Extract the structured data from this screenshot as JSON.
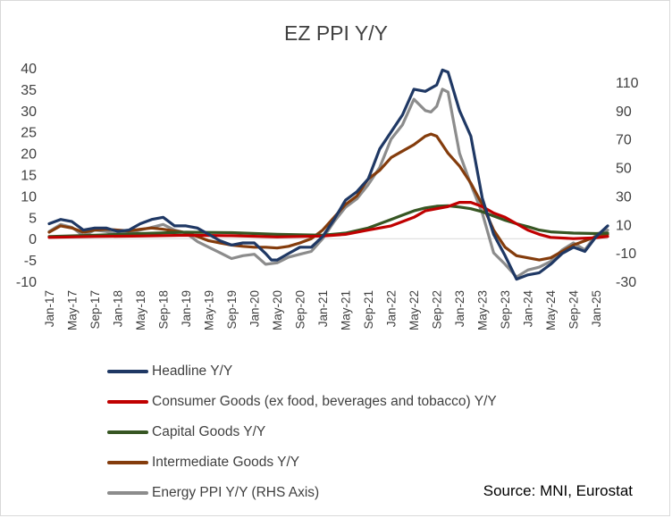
{
  "chart_data": {
    "type": "line",
    "title": "EZ PPI Y/Y",
    "source": "Source: MNI, Eurostat",
    "y_left": {
      "min": -10,
      "max": 40,
      "ticks": [
        "40",
        "35",
        "30",
        "25",
        "20",
        "15",
        "10",
        "5",
        "0",
        "-5",
        "-10"
      ]
    },
    "y_right": {
      "min": -30,
      "max": 120,
      "ticks": [
        "110",
        "90",
        "70",
        "50",
        "30",
        "10",
        "-10",
        "-30"
      ]
    },
    "x_tick_labels": [
      "Jan-17",
      "May-17",
      "Sep-17",
      "Jan-18",
      "May-18",
      "Sep-18",
      "Jan-19",
      "May-19",
      "Sep-19",
      "Jan-20",
      "May-20",
      "Sep-20",
      "Jan-21",
      "May-21",
      "Sep-21",
      "Jan-22",
      "May-22",
      "Sep-22",
      "Jan-23",
      "May-23",
      "Sep-23",
      "Jan-24",
      "May-24",
      "Sep-24",
      "Jan-25"
    ],
    "x_range": [
      0,
      98
    ],
    "series": [
      {
        "name": "Headline Y/Y",
        "color": "#1f3864",
        "axis": "left",
        "points": [
          [
            0,
            3.5
          ],
          [
            2,
            4.5
          ],
          [
            4,
            4.0
          ],
          [
            6,
            2.0
          ],
          [
            8,
            2.5
          ],
          [
            10,
            2.5
          ],
          [
            12,
            1.7
          ],
          [
            14,
            2.0
          ],
          [
            16,
            3.5
          ],
          [
            18,
            4.5
          ],
          [
            20,
            5.0
          ],
          [
            22,
            3.0
          ],
          [
            24,
            3.0
          ],
          [
            26,
            2.5
          ],
          [
            28,
            1.0
          ],
          [
            30,
            -0.5
          ],
          [
            32,
            -1.5
          ],
          [
            34,
            -1.0
          ],
          [
            36,
            -1.0
          ],
          [
            38,
            -3.5
          ],
          [
            39,
            -5.0
          ],
          [
            40,
            -5.0
          ],
          [
            42,
            -3.5
          ],
          [
            44,
            -2.0
          ],
          [
            46,
            -2.0
          ],
          [
            48,
            0.5
          ],
          [
            50,
            4.5
          ],
          [
            52,
            9.0
          ],
          [
            54,
            11.0
          ],
          [
            56,
            14.0
          ],
          [
            58,
            21.0
          ],
          [
            60,
            25.0
          ],
          [
            62,
            29.0
          ],
          [
            64,
            35.0
          ],
          [
            66,
            34.5
          ],
          [
            68,
            36.0
          ],
          [
            69,
            39.5
          ],
          [
            70,
            39.0
          ],
          [
            72,
            30.0
          ],
          [
            74,
            24.0
          ],
          [
            76,
            9.5
          ],
          [
            78,
            1.0
          ],
          [
            80,
            -4.0
          ],
          [
            82,
            -9.5
          ],
          [
            84,
            -8.5
          ],
          [
            86,
            -8.0
          ],
          [
            88,
            -6.0
          ],
          [
            90,
            -3.5
          ],
          [
            92,
            -2.0
          ],
          [
            94,
            -3.0
          ],
          [
            96,
            0.5
          ],
          [
            98,
            3.0
          ]
        ]
      },
      {
        "name": "Consumer Goods (ex food, beverages and tobacco) Y/Y",
        "color": "#c00000",
        "axis": "left",
        "points": [
          [
            0,
            0.3
          ],
          [
            8,
            0.5
          ],
          [
            16,
            0.6
          ],
          [
            24,
            0.8
          ],
          [
            32,
            0.7
          ],
          [
            40,
            0.4
          ],
          [
            48,
            0.6
          ],
          [
            52,
            1.0
          ],
          [
            56,
            2.0
          ],
          [
            60,
            3.0
          ],
          [
            62,
            4.0
          ],
          [
            64,
            5.0
          ],
          [
            66,
            6.5
          ],
          [
            70,
            7.5
          ],
          [
            72,
            8.5
          ],
          [
            74,
            8.5
          ],
          [
            76,
            7.5
          ],
          [
            78,
            6.0
          ],
          [
            80,
            5.0
          ],
          [
            82,
            3.5
          ],
          [
            84,
            2.0
          ],
          [
            86,
            1.0
          ],
          [
            88,
            0.3
          ],
          [
            92,
            0.0
          ],
          [
            96,
            0.2
          ],
          [
            98,
            0.5
          ]
        ]
      },
      {
        "name": "Capital Goods Y/Y",
        "color": "#375623",
        "axis": "left",
        "points": [
          [
            0,
            0.5
          ],
          [
            8,
            0.8
          ],
          [
            16,
            1.2
          ],
          [
            24,
            1.5
          ],
          [
            32,
            1.4
          ],
          [
            40,
            1.0
          ],
          [
            48,
            0.8
          ],
          [
            52,
            1.3
          ],
          [
            56,
            2.5
          ],
          [
            58,
            3.5
          ],
          [
            60,
            4.5
          ],
          [
            62,
            5.5
          ],
          [
            64,
            6.5
          ],
          [
            66,
            7.2
          ],
          [
            68,
            7.6
          ],
          [
            70,
            7.7
          ],
          [
            72,
            7.4
          ],
          [
            74,
            7.0
          ],
          [
            76,
            6.3
          ],
          [
            78,
            5.3
          ],
          [
            80,
            4.3
          ],
          [
            82,
            3.5
          ],
          [
            84,
            2.8
          ],
          [
            86,
            2.0
          ],
          [
            88,
            1.6
          ],
          [
            92,
            1.3
          ],
          [
            96,
            1.2
          ],
          [
            98,
            1.3
          ]
        ]
      },
      {
        "name": "Intermediate Goods Y/Y",
        "color": "#843c0c",
        "axis": "left",
        "points": [
          [
            0,
            1.5
          ],
          [
            2,
            3.0
          ],
          [
            4,
            2.5
          ],
          [
            6,
            1.5
          ],
          [
            8,
            2.0
          ],
          [
            10,
            2.2
          ],
          [
            12,
            2.0
          ],
          [
            14,
            1.8
          ],
          [
            16,
            2.2
          ],
          [
            18,
            2.5
          ],
          [
            20,
            2.2
          ],
          [
            22,
            1.8
          ],
          [
            24,
            1.4
          ],
          [
            26,
            0.5
          ],
          [
            28,
            -0.5
          ],
          [
            30,
            -1.0
          ],
          [
            32,
            -1.5
          ],
          [
            34,
            -1.8
          ],
          [
            36,
            -2.0
          ],
          [
            38,
            -2.0
          ],
          [
            40,
            -2.2
          ],
          [
            42,
            -1.8
          ],
          [
            44,
            -1.0
          ],
          [
            46,
            0.0
          ],
          [
            48,
            2.0
          ],
          [
            50,
            5.0
          ],
          [
            52,
            8.0
          ],
          [
            54,
            10.0
          ],
          [
            56,
            14.0
          ],
          [
            58,
            16.0
          ],
          [
            60,
            19.0
          ],
          [
            62,
            20.5
          ],
          [
            64,
            22.0
          ],
          [
            66,
            24.0
          ],
          [
            67,
            24.5
          ],
          [
            68,
            24.0
          ],
          [
            70,
            20.0
          ],
          [
            72,
            17.0
          ],
          [
            74,
            13.0
          ],
          [
            76,
            8.0
          ],
          [
            78,
            2.0
          ],
          [
            80,
            -2.0
          ],
          [
            82,
            -4.0
          ],
          [
            84,
            -4.5
          ],
          [
            86,
            -5.0
          ],
          [
            88,
            -4.5
          ],
          [
            90,
            -3.0
          ],
          [
            92,
            -1.5
          ],
          [
            94,
            -0.5
          ],
          [
            96,
            0.5
          ],
          [
            98,
            1.0
          ]
        ]
      },
      {
        "name": "Energy PPI Y/Y (RHS Axis)",
        "color": "#8c8c8c",
        "axis": "right",
        "points": [
          [
            0,
            5
          ],
          [
            2,
            10
          ],
          [
            4,
            8
          ],
          [
            6,
            2
          ],
          [
            8,
            6
          ],
          [
            10,
            5
          ],
          [
            12,
            3
          ],
          [
            14,
            4
          ],
          [
            16,
            6
          ],
          [
            18,
            8
          ],
          [
            20,
            10
          ],
          [
            22,
            6
          ],
          [
            24,
            4
          ],
          [
            26,
            -2
          ],
          [
            28,
            -6
          ],
          [
            30,
            -10
          ],
          [
            32,
            -14
          ],
          [
            34,
            -12
          ],
          [
            36,
            -11
          ],
          [
            38,
            -18
          ],
          [
            40,
            -17
          ],
          [
            42,
            -13
          ],
          [
            44,
            -11
          ],
          [
            46,
            -9
          ],
          [
            48,
            0
          ],
          [
            50,
            12
          ],
          [
            52,
            22
          ],
          [
            54,
            28
          ],
          [
            56,
            38
          ],
          [
            58,
            50
          ],
          [
            60,
            70
          ],
          [
            62,
            80
          ],
          [
            64,
            98
          ],
          [
            66,
            90
          ],
          [
            67,
            89
          ],
          [
            68,
            93
          ],
          [
            69,
            105
          ],
          [
            70,
            103
          ],
          [
            72,
            60
          ],
          [
            74,
            38
          ],
          [
            76,
            18
          ],
          [
            78,
            -10
          ],
          [
            80,
            -18
          ],
          [
            82,
            -27
          ],
          [
            84,
            -22
          ],
          [
            86,
            -20
          ],
          [
            88,
            -16
          ],
          [
            90,
            -8
          ],
          [
            92,
            -3
          ],
          [
            94,
            -8
          ],
          [
            96,
            3
          ],
          [
            98,
            6
          ]
        ]
      }
    ]
  }
}
